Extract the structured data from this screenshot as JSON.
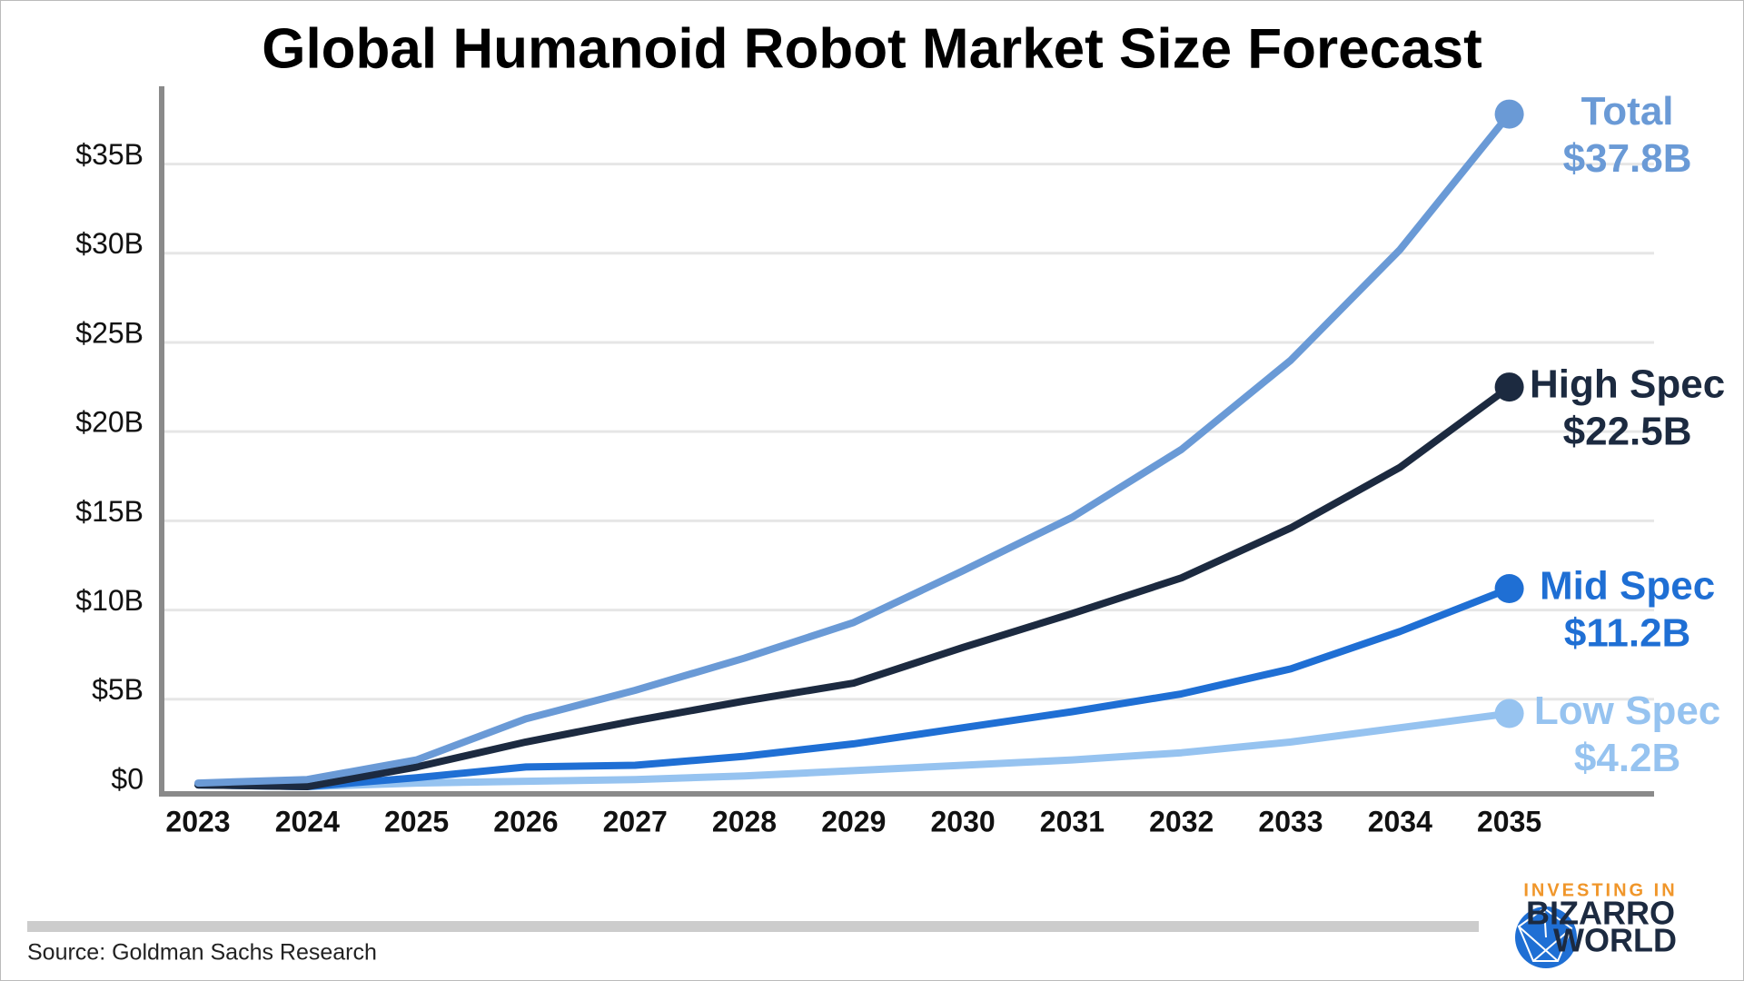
{
  "chart_data": {
    "type": "line",
    "title": "Global Humanoid Robot Market Size Forecast",
    "categories": [
      "2023",
      "2024",
      "2025",
      "2026",
      "2027",
      "2028",
      "2029",
      "2030",
      "2031",
      "2032",
      "2033",
      "2034",
      "2035"
    ],
    "series": [
      {
        "name": "Total",
        "color": "#6a9ad6",
        "values": [
          0.3,
          0.5,
          1.6,
          3.9,
          5.5,
          7.3,
          9.3,
          12.2,
          15.2,
          19.0,
          24.0,
          30.2,
          37.8
        ],
        "value_labels": [
          null,
          null,
          null,
          null,
          null,
          null,
          null,
          null,
          null,
          null,
          null,
          null,
          "$37.8B"
        ]
      },
      {
        "name": "High Spec",
        "color": "#1c2a40",
        "values": [
          0.2,
          0.1,
          1.2,
          2.6,
          3.8,
          4.9,
          5.9,
          7.9,
          9.8,
          11.8,
          14.6,
          18.0,
          22.5
        ],
        "value_labels": [
          null,
          null,
          null,
          null,
          null,
          null,
          null,
          null,
          null,
          null,
          null,
          null,
          "$22.5B"
        ]
      },
      {
        "name": "Mid Spec",
        "color": "#1f6fd4",
        "values": [
          0.2,
          0.1,
          0.6,
          1.2,
          1.3,
          1.8,
          2.5,
          3.4,
          4.3,
          5.3,
          6.7,
          8.8,
          11.2
        ],
        "value_labels": [
          null,
          null,
          null,
          null,
          null,
          null,
          null,
          null,
          null,
          null,
          null,
          null,
          "$11.2B"
        ]
      },
      {
        "name": "Low Spec",
        "color": "#96c3f0",
        "values": [
          0.2,
          0.1,
          0.3,
          0.4,
          0.5,
          0.7,
          1.0,
          1.3,
          1.6,
          2.0,
          2.6,
          3.4,
          4.2
        ],
        "value_labels": [
          null,
          null,
          null,
          null,
          null,
          null,
          null,
          null,
          null,
          null,
          null,
          null,
          "$4.2B"
        ]
      }
    ],
    "ylim": [
      0,
      39
    ],
    "yticks": [
      {
        "value": 0,
        "label": "$0"
      },
      {
        "value": 5,
        "label": "$5B"
      },
      {
        "value": 10,
        "label": "$10B"
      },
      {
        "value": 15,
        "label": "$15B"
      },
      {
        "value": 20,
        "label": "$20B"
      },
      {
        "value": 25,
        "label": "$25B"
      },
      {
        "value": 30,
        "label": "$30B"
      },
      {
        "value": 35,
        "label": "$35B"
      }
    ],
    "grid": true,
    "source": "Source: Goldman Sachs Research"
  },
  "branding": {
    "line1": "INVESTING IN",
    "line2": "BIZARRO",
    "line3": "WORLD"
  }
}
